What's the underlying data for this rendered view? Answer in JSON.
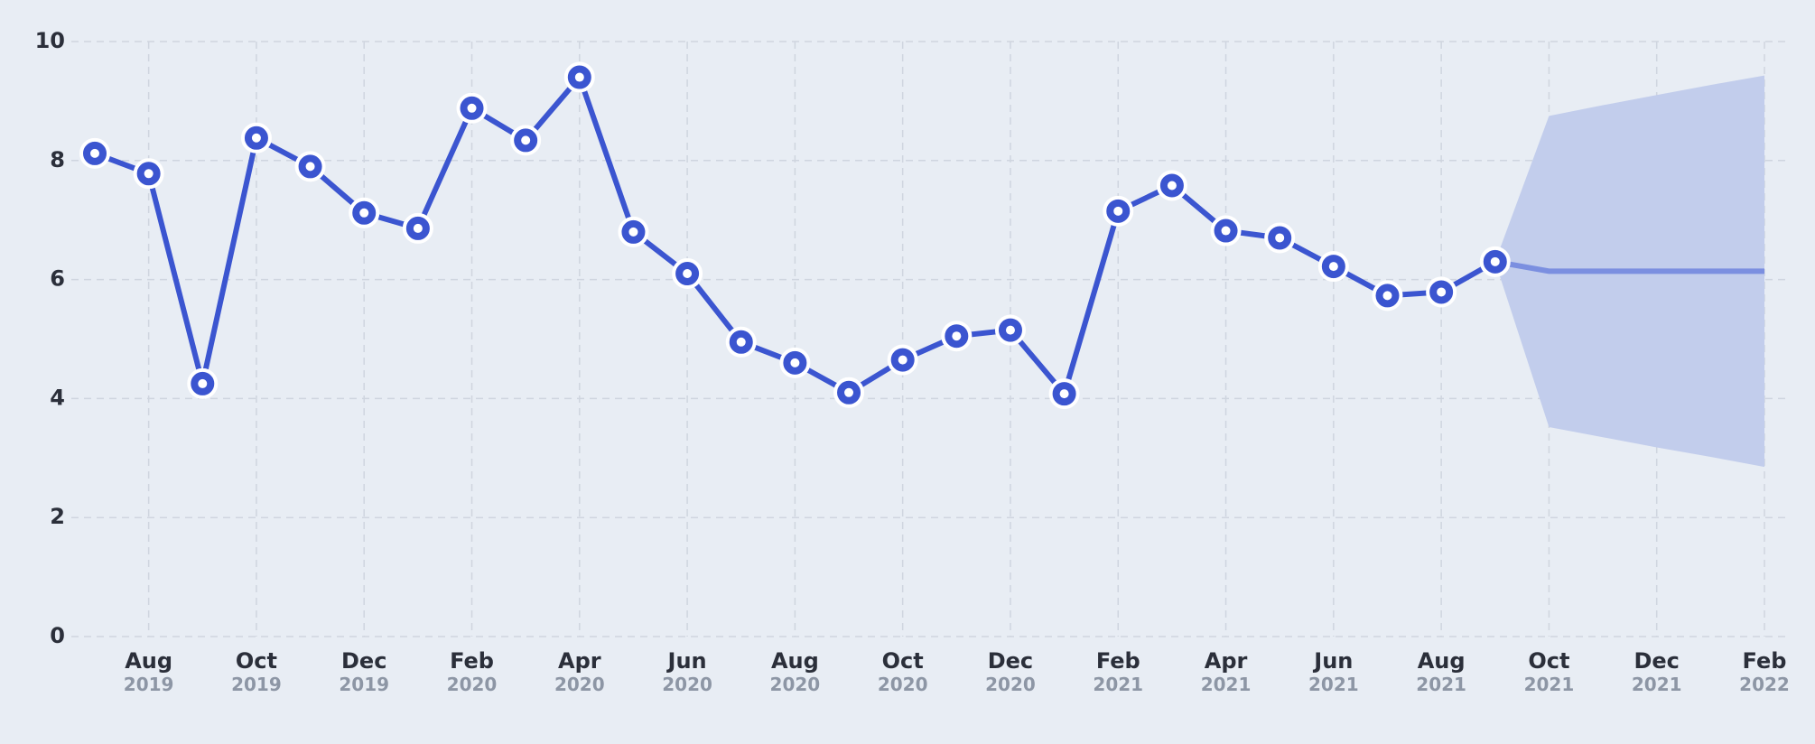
{
  "chart_data": {
    "type": "line",
    "x": [
      "2019-07",
      "2019-08",
      "2019-09",
      "2019-10",
      "2019-11",
      "2019-12",
      "2020-01",
      "2020-02",
      "2020-03",
      "2020-04",
      "2020-05",
      "2020-06",
      "2020-07",
      "2020-08",
      "2020-09",
      "2020-10",
      "2020-11",
      "2020-12",
      "2021-01",
      "2021-02",
      "2021-03",
      "2021-04",
      "2021-05",
      "2021-06",
      "2021-07",
      "2021-08",
      "2021-09"
    ],
    "series": [
      {
        "color": "#3b55d0",
        "values": [
          8.12,
          7.78,
          4.25,
          8.38,
          7.9,
          7.12,
          6.86,
          8.88,
          8.34,
          9.4,
          6.8,
          6.1,
          4.95,
          4.6,
          4.1,
          4.65,
          5.05,
          5.15,
          4.08,
          7.15,
          7.58,
          6.82,
          6.7,
          6.22,
          5.73,
          5.79,
          6.3
        ]
      }
    ],
    "forecast": {
      "color": "#7b8fe0",
      "band_color": "#c2cdec",
      "x": [
        "2021-09",
        "2021-10",
        "2021-11",
        "2021-12",
        "2022-01",
        "2022-02"
      ],
      "values": [
        6.3,
        6.14,
        6.14,
        6.14,
        6.14,
        6.14
      ],
      "upper": [
        6.3,
        8.75,
        8.93,
        9.1,
        9.27,
        9.43
      ],
      "lower": [
        6.3,
        3.52,
        3.35,
        3.18,
        3.02,
        2.85
      ]
    },
    "xlim": [
      "2019-07",
      "2022-02"
    ],
    "xticks": [
      {
        "value": "2019-08",
        "label": "Aug",
        "year": "2019"
      },
      {
        "value": "2019-10",
        "label": "Oct",
        "year": "2019"
      },
      {
        "value": "2019-12",
        "label": "Dec",
        "year": "2019"
      },
      {
        "value": "2020-02",
        "label": "Feb",
        "year": "2020"
      },
      {
        "value": "2020-04",
        "label": "Apr",
        "year": "2020"
      },
      {
        "value": "2020-06",
        "label": "Jun",
        "year": "2020"
      },
      {
        "value": "2020-08",
        "label": "Aug",
        "year": "2020"
      },
      {
        "value": "2020-10",
        "label": "Oct",
        "year": "2020"
      },
      {
        "value": "2020-12",
        "label": "Dec",
        "year": "2020"
      },
      {
        "value": "2021-02",
        "label": "Feb",
        "year": "2021"
      },
      {
        "value": "2021-04",
        "label": "Apr",
        "year": "2021"
      },
      {
        "value": "2021-06",
        "label": "Jun",
        "year": "2021"
      },
      {
        "value": "2021-08",
        "label": "Aug",
        "year": "2021"
      },
      {
        "value": "2021-10",
        "label": "Oct",
        "year": "2021"
      },
      {
        "value": "2021-12",
        "label": "Dec",
        "year": "2021"
      },
      {
        "value": "2022-02",
        "label": "Feb",
        "year": "2022"
      }
    ],
    "ylim": [
      0,
      10
    ],
    "yticks": [
      0,
      2,
      4,
      6,
      8,
      10
    ],
    "grid": true
  }
}
